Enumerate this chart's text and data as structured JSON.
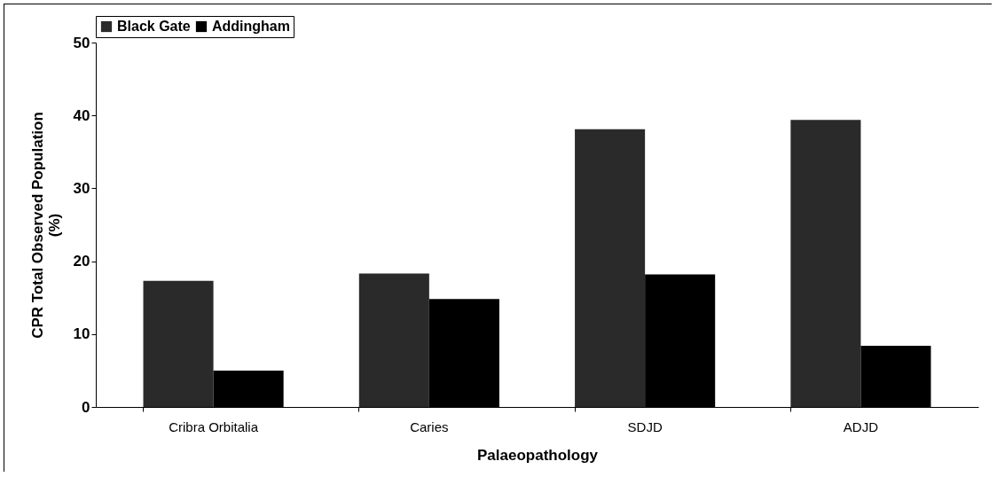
{
  "chart_data": {
    "type": "bar",
    "xlabel": "Palaeopathology",
    "ylabel": "CPR Total Observed Population (%)",
    "categories": [
      "Cribra Orbitalia",
      "Caries",
      "SDJD",
      "ADJD"
    ],
    "series": [
      {
        "name": "Black Gate",
        "color": "#2a2a2a",
        "values": [
          17.3,
          18.3,
          38.1,
          39.4
        ]
      },
      {
        "name": "Addingham",
        "color": "#000000",
        "values": [
          5.0,
          14.8,
          18.2,
          8.4
        ]
      }
    ],
    "ylim": [
      0,
      50
    ],
    "yticks": [
      0,
      10,
      20,
      30,
      40,
      50
    ],
    "grid": false,
    "legend": "top"
  }
}
